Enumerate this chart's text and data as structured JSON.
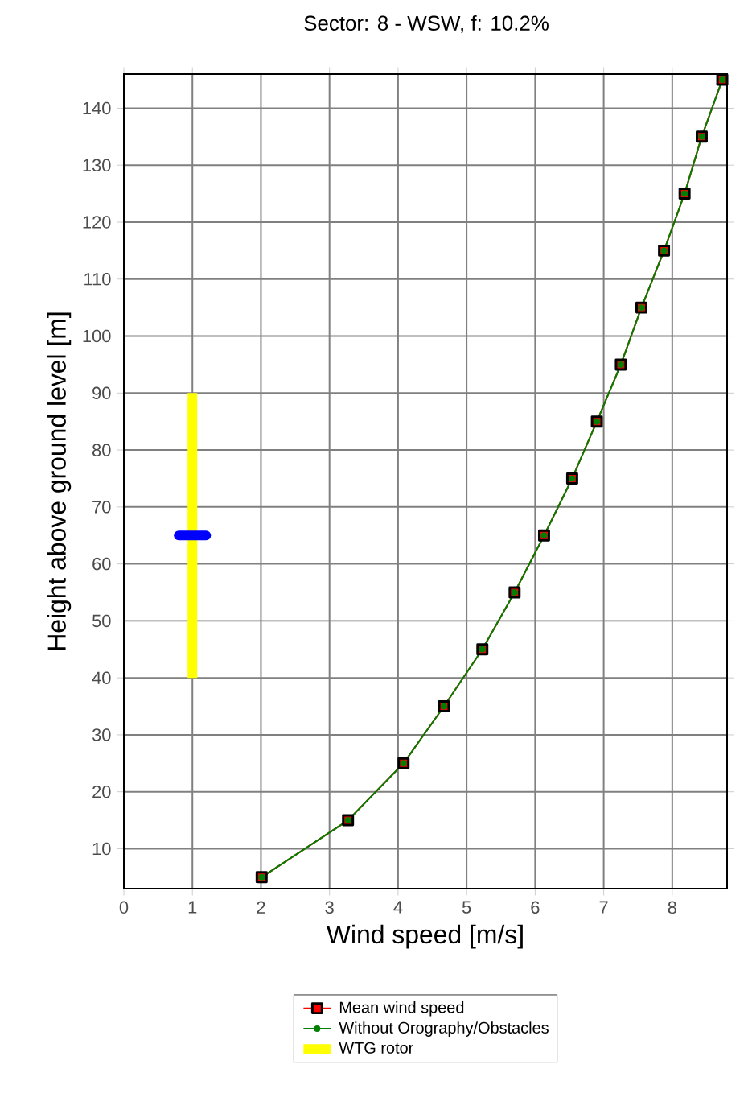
{
  "chart_data": {
    "type": "line",
    "title": "Sector: 8 - WSW, f: 10.2%",
    "xlabel": "Wind speed [m/s]",
    "ylabel": "Height above ground level [m]",
    "xlim": [
      0,
      8.8
    ],
    "ylim": [
      3,
      146
    ],
    "xticks": [
      0,
      1,
      2,
      3,
      4,
      5,
      6,
      7,
      8
    ],
    "yticks": [
      10,
      20,
      30,
      40,
      50,
      60,
      70,
      80,
      90,
      100,
      110,
      120,
      130,
      140
    ],
    "grid": true,
    "legend": "bottom",
    "line_style": "solid",
    "series": [
      {
        "name": "Mean wind speed",
        "color": "#ff0000",
        "marker": "square",
        "x": [
          2.01,
          3.27,
          4.08,
          4.67,
          5.23,
          5.7,
          6.13,
          6.54,
          6.9,
          7.25,
          7.55,
          7.88,
          8.18,
          8.43,
          8.73
        ],
        "values": [
          5,
          15,
          25,
          35,
          45,
          55,
          65,
          75,
          85,
          95,
          105,
          115,
          125,
          135,
          145
        ]
      },
      {
        "name": "Without Orography/Obstacles",
        "color": "#008000",
        "marker": "circle",
        "x": [
          2.01,
          3.27,
          4.08,
          4.67,
          5.23,
          5.7,
          6.13,
          6.54,
          6.9,
          7.25,
          7.55,
          7.88,
          8.18,
          8.43,
          8.73
        ],
        "values": [
          5,
          15,
          25,
          35,
          45,
          55,
          65,
          75,
          85,
          95,
          105,
          115,
          125,
          135,
          145
        ]
      },
      {
        "name": "WTG rotor",
        "color": "#ffff00",
        "marker": "none",
        "x": [
          1,
          1
        ],
        "values": [
          40,
          90
        ]
      },
      {
        "color": "#0000ff",
        "marker": "none",
        "x": [
          0.8,
          1.2
        ],
        "values": [
          65,
          65
        ]
      }
    ]
  }
}
